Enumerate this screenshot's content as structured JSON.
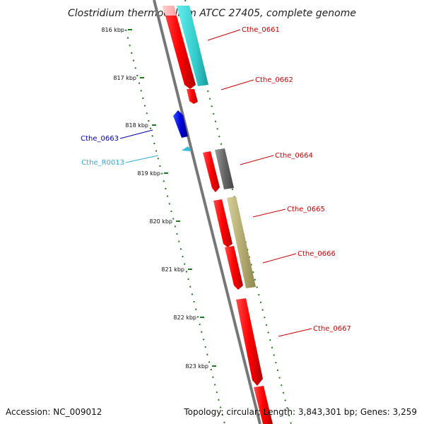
{
  "header": {
    "title": "Clostridium thermocellum ATCC 27405, complete genome"
  },
  "footer": {
    "accession": "Accession: NC_009012",
    "topology": "Topology: circular; Length: 3,843,301 bp; Genes: 3,259"
  },
  "colors": {
    "backbone": "#7a7a7a",
    "tick": "#1a7d1a",
    "cds": "#ff0000",
    "cds_light": "#ffb3b3",
    "minus_strand": "#0000cc",
    "rna": "#33bbdd",
    "cyan_feature": "#33cccc",
    "grey_feature": "#666666",
    "olive_feature": "#b5ad73"
  },
  "ticks": [
    {
      "label": "816 kbp"
    },
    {
      "label": "817 kbp"
    },
    {
      "label": "818 kbp"
    },
    {
      "label": "819 kbp"
    },
    {
      "label": "820 kbp"
    },
    {
      "label": "821 kbp"
    },
    {
      "label": "822 kbp"
    },
    {
      "label": "823 kbp"
    }
  ],
  "labels": [
    {
      "text": "Cthe_0661",
      "color": "#cc0000"
    },
    {
      "text": "Cthe_0662",
      "color": "#cc0000"
    },
    {
      "text": "Cthe_0663",
      "color": "#0000aa"
    },
    {
      "text": "Cthe_R0013",
      "color": "#33aadd"
    },
    {
      "text": "Cthe_0664",
      "color": "#cc0000"
    },
    {
      "text": "Cthe_0665",
      "color": "#cc0000"
    },
    {
      "text": "Cthe_0666",
      "color": "#cc0000"
    },
    {
      "text": "Cthe_0667",
      "color": "#cc0000"
    }
  ]
}
